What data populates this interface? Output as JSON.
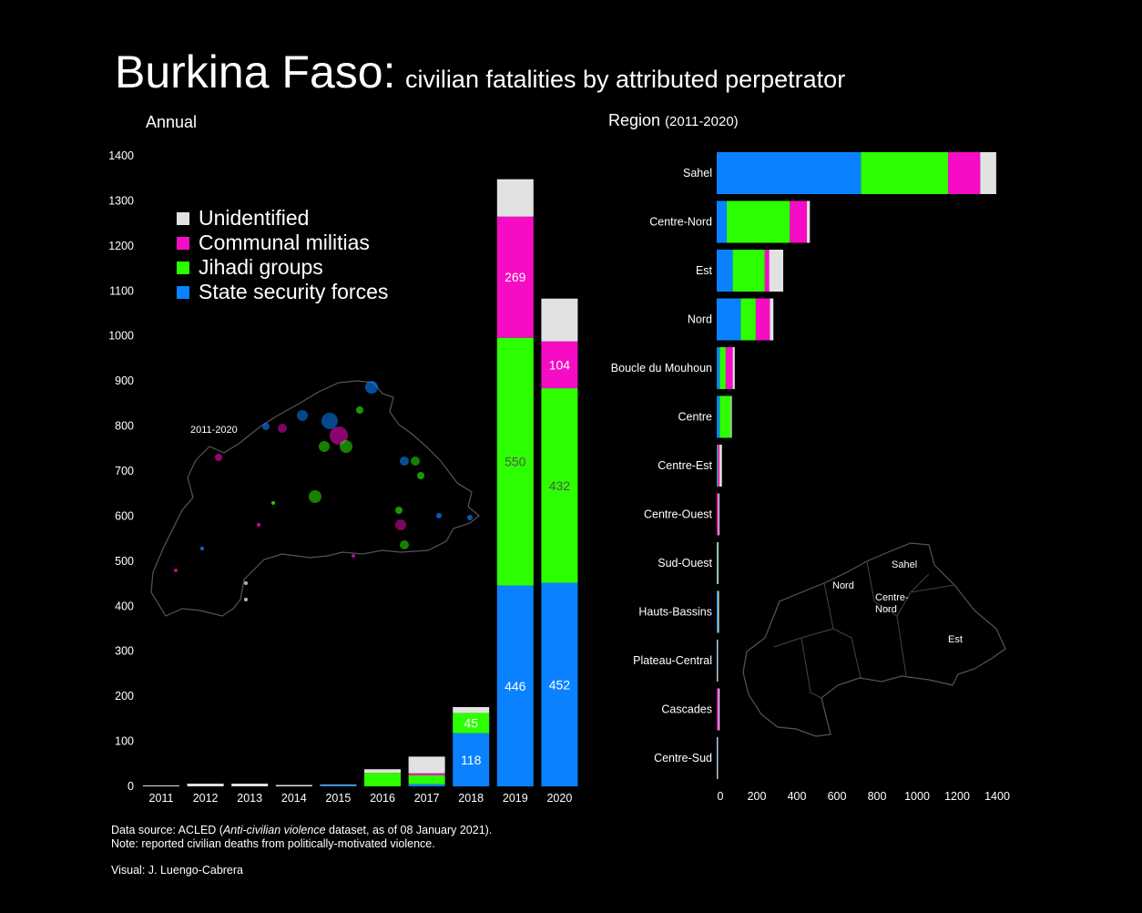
{
  "title": {
    "main": "Burkina Faso:",
    "sub": "civilian fatalities by attributed perpetrator"
  },
  "panels": {
    "annual": "Annual",
    "region": "Region",
    "region_period": "(2011-2020)",
    "inset_map_label": "2011-2020"
  },
  "colors": {
    "state": "#0a82ff",
    "jihadi": "#2dff00",
    "communal": "#f50cc4",
    "unidentified": "#e2e2e2",
    "background": "#000000"
  },
  "legend": [
    {
      "label": "Unidentified",
      "color": "#e2e2e2"
    },
    {
      "label": "Communal militias",
      "color": "#f50cc4"
    },
    {
      "label": "Jihadi groups",
      "color": "#2dff00"
    },
    {
      "label": "State security forces",
      "color": "#0a82ff"
    }
  ],
  "chart_data": [
    {
      "type": "bar",
      "stacked": true,
      "orientation": "vertical",
      "title": "Annual",
      "categories": [
        "2011",
        "2012",
        "2013",
        "2014",
        "2015",
        "2016",
        "2017",
        "2018",
        "2019",
        "2020"
      ],
      "y_ticks": [
        0,
        100,
        200,
        300,
        400,
        500,
        600,
        700,
        800,
        900,
        1000,
        1100,
        1200,
        1300,
        1400
      ],
      "ylim": [
        0,
        1400
      ],
      "series": [
        {
          "name": "State security forces",
          "color": "#0a82ff",
          "values": [
            0,
            0,
            0,
            0,
            3,
            0,
            5,
            118,
            446,
            452
          ]
        },
        {
          "name": "Jihadi groups",
          "color": "#2dff00",
          "values": [
            0,
            0,
            0,
            0,
            0,
            30,
            20,
            45,
            550,
            432
          ]
        },
        {
          "name": "Communal militias",
          "color": "#f50cc4",
          "values": [
            0,
            0,
            0,
            0,
            0,
            0,
            4,
            0,
            269,
            104
          ]
        },
        {
          "name": "Unidentified",
          "color": "#e2e2e2",
          "values": [
            2,
            6,
            6,
            3,
            1,
            8,
            37,
            13,
            83,
            95
          ]
        }
      ],
      "data_labels": [
        {
          "category": "2018",
          "series": "State security forces",
          "text": "118"
        },
        {
          "category": "2018",
          "series": "Jihadi groups",
          "text": "45"
        },
        {
          "category": "2019",
          "series": "State security forces",
          "text": "446"
        },
        {
          "category": "2019",
          "series": "Jihadi groups",
          "text": "550"
        },
        {
          "category": "2019",
          "series": "Communal militias",
          "text": "269"
        },
        {
          "category": "2020",
          "series": "State security forces",
          "text": "452"
        },
        {
          "category": "2020",
          "series": "Jihadi groups",
          "text": "432"
        },
        {
          "category": "2020",
          "series": "Communal militias",
          "text": "104"
        }
      ]
    },
    {
      "type": "bar",
      "stacked": true,
      "orientation": "horizontal",
      "title": "Region (2011-2020)",
      "categories": [
        "Sahel",
        "Centre-Nord",
        "Est",
        "Nord",
        "Boucle du Mouhoun",
        "Centre",
        "Centre-Est",
        "Centre-Ouest",
        "Sud-Ouest",
        "Hauts-Bassins",
        "Plateau-Central",
        "Cascades",
        "Centre-Sud"
      ],
      "x_ticks": [
        0,
        200,
        400,
        600,
        800,
        1000,
        1200,
        1400
      ],
      "xlim": [
        0,
        1400
      ],
      "series": [
        {
          "name": "State security forces",
          "color": "#0a82ff",
          "values": [
            720,
            50,
            80,
            120,
            15,
            15,
            3,
            0,
            2,
            5,
            1,
            1,
            1
          ]
        },
        {
          "name": "Jihadi groups",
          "color": "#2dff00",
          "values": [
            435,
            315,
            160,
            75,
            30,
            55,
            3,
            0,
            1,
            1,
            0,
            0,
            0
          ]
        },
        {
          "name": "Communal militias",
          "color": "#f50cc4",
          "values": [
            160,
            85,
            22,
            70,
            35,
            0,
            8,
            8,
            0,
            0,
            0,
            8,
            0
          ]
        },
        {
          "name": "Unidentified",
          "color": "#e2e2e2",
          "values": [
            80,
            15,
            70,
            18,
            10,
            2,
            12,
            2,
            3,
            2,
            3,
            3,
            2
          ]
        }
      ]
    }
  ],
  "region_map_labels": [
    "Sahel",
    "Nord",
    "Centre-Nord",
    "Est"
  ],
  "footer": {
    "source_prefix": "Data source: ACLED (",
    "source_dataset": "Anti-civilian violence",
    "source_suffix": " dataset, as of 08 January 2021).",
    "note": "Note: reported civilian deaths from politically-motivated violence.",
    "credit": "Visual: J. Luengo-Cabrera"
  }
}
